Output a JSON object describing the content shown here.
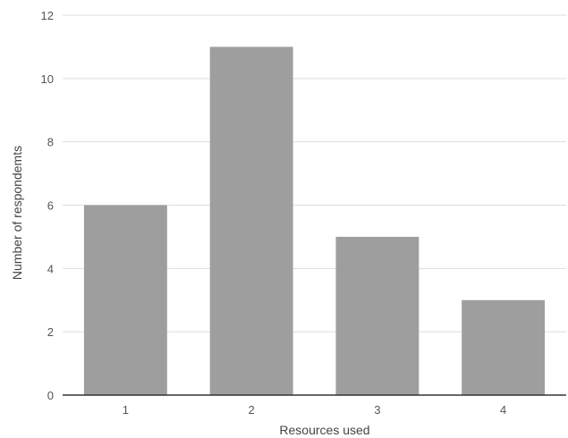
{
  "chart_data": {
    "type": "bar",
    "title": "",
    "xlabel": "Resources used",
    "ylabel": "Number of respondemts",
    "categories": [
      "1",
      "2",
      "3",
      "4"
    ],
    "values": [
      6,
      11,
      5,
      3
    ],
    "ylim": [
      0,
      12
    ],
    "yticks": [
      0,
      2,
      4,
      6,
      8,
      10,
      12
    ],
    "grid": true,
    "legend": "none",
    "colors": {
      "bar": "#9e9e9e",
      "grid": "#dddddd",
      "baseline": "#333333"
    }
  }
}
